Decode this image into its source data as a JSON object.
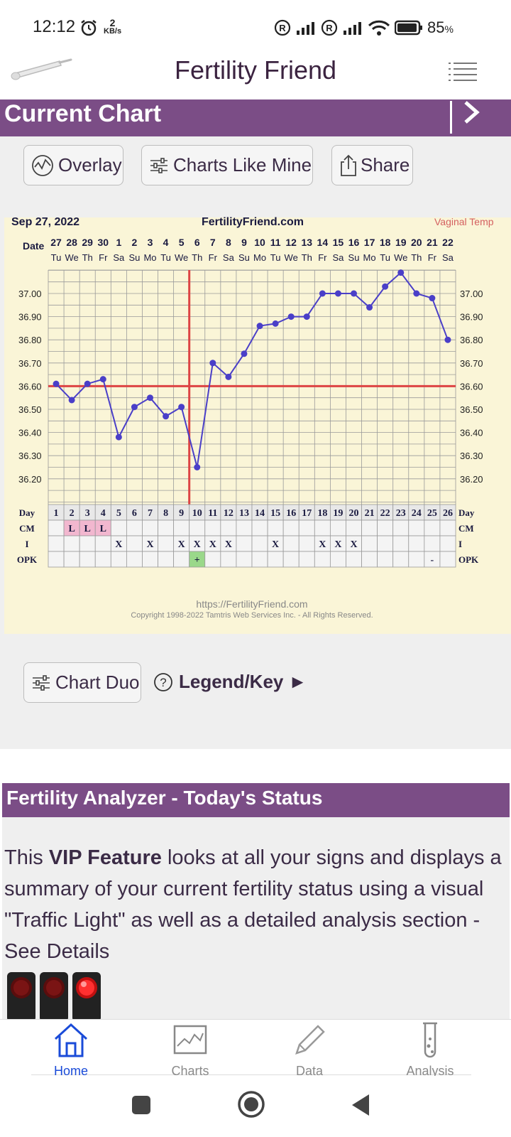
{
  "status_bar": {
    "time": "12:12",
    "net_speed_value": "2",
    "net_speed_unit": "KB/s",
    "battery": "85"
  },
  "app": {
    "title": "Fertility Friend"
  },
  "current_chart": {
    "title": "Current Chart",
    "buttons": {
      "overlay": "Overlay",
      "charts_like_mine": "Charts Like Mine",
      "share": "Share",
      "chart_duo": "Chart Duo",
      "legend_key": "Legend/Key ►"
    }
  },
  "chart_header": {
    "date": "Sep 27, 2022",
    "site": "FertilityFriend.com",
    "temp_type": "Vaginal Temp",
    "date_label": "Date"
  },
  "chart_footer": {
    "url": "https://FertilityFriend.com",
    "copyright": "Copyright 1998-2022 Tamtris Web Services Inc. - All Rights Reserved."
  },
  "chart_data": {
    "type": "line",
    "ylim": [
      36.1,
      37.1
    ],
    "y_ticks": [
      "37.00",
      "36.90",
      "36.80",
      "36.70",
      "36.60",
      "36.50",
      "36.40",
      "36.30",
      "36.20"
    ],
    "dates": [
      "27",
      "28",
      "29",
      "30",
      "1",
      "2",
      "3",
      "4",
      "5",
      "6",
      "7",
      "8",
      "9",
      "10",
      "11",
      "12",
      "13",
      "14",
      "15",
      "16",
      "17",
      "18",
      "19",
      "20",
      "21",
      "22"
    ],
    "weekdays": [
      "Tu",
      "We",
      "Th",
      "Fr",
      "Sa",
      "Su",
      "Mo",
      "Tu",
      "We",
      "Th",
      "Fr",
      "Sa",
      "Su",
      "Mo",
      "Tu",
      "We",
      "Th",
      "Fr",
      "Sa",
      "Su",
      "Mo",
      "Tu",
      "We",
      "Th",
      "Fr",
      "Sa"
    ],
    "days": [
      "1",
      "2",
      "3",
      "4",
      "5",
      "6",
      "7",
      "8",
      "9",
      "10",
      "11",
      "12",
      "13",
      "14",
      "15",
      "16",
      "17",
      "18",
      "19",
      "20",
      "21",
      "22",
      "23",
      "24",
      "25",
      "26"
    ],
    "temps": [
      36.61,
      36.54,
      36.61,
      36.63,
      36.38,
      36.51,
      36.55,
      36.47,
      36.51,
      36.25,
      36.7,
      36.64,
      36.74,
      36.86,
      36.87,
      36.9,
      36.9,
      37.0,
      37.0,
      37.0,
      36.94,
      37.03,
      37.09,
      37.0,
      36.98,
      36.8
    ],
    "coverline": 36.6,
    "ovulation_day": 10,
    "rows": [
      {
        "label": "Day"
      },
      {
        "label": "CM",
        "cells": [
          "",
          "L",
          "L",
          "L",
          "",
          "",
          "",
          "",
          "",
          "",
          "",
          "",
          "",
          "",
          "",
          "",
          "",
          "",
          "",
          "",
          "",
          "",
          "",
          "",
          "",
          ""
        ]
      },
      {
        "label": "I",
        "cells": [
          "",
          "",
          "",
          "",
          "X",
          "",
          "X",
          "",
          "X",
          "X",
          "X",
          "X",
          "",
          "",
          "X",
          "",
          "",
          "X",
          "X",
          "X",
          "",
          "",
          "",
          "",
          "",
          ""
        ]
      },
      {
        "label": "OPK",
        "cells": [
          "",
          "",
          "",
          "",
          "",
          "",
          "",
          "",
          "",
          "+",
          "",
          "",
          "",
          "",
          "",
          "",
          "",
          "",
          "",
          "",
          "",
          "",
          "",
          "",
          "-",
          ""
        ]
      }
    ],
    "colors": {
      "line": "#4a3fc8",
      "coverline": "#d44",
      "cm_fill": "#f2b7cf",
      "opk_pos": "#9ad88a",
      "grid": "#9a9a9a",
      "bg": "#faf5d7"
    }
  },
  "analyzer": {
    "title": "Fertility Analyzer - Today's Status",
    "text_before": "This ",
    "text_bold": "VIP Feature",
    "text_after": " looks at all your signs and displays a summary of your current fertility status using a visual \"Traffic Light\" as well as a detailed analysis section - ",
    "link": "See Details"
  },
  "bottom_nav": [
    {
      "label": "Home",
      "active": true
    },
    {
      "label": "Charts",
      "active": false
    },
    {
      "label": "Data",
      "active": false
    },
    {
      "label": "Analysis",
      "active": false
    }
  ]
}
